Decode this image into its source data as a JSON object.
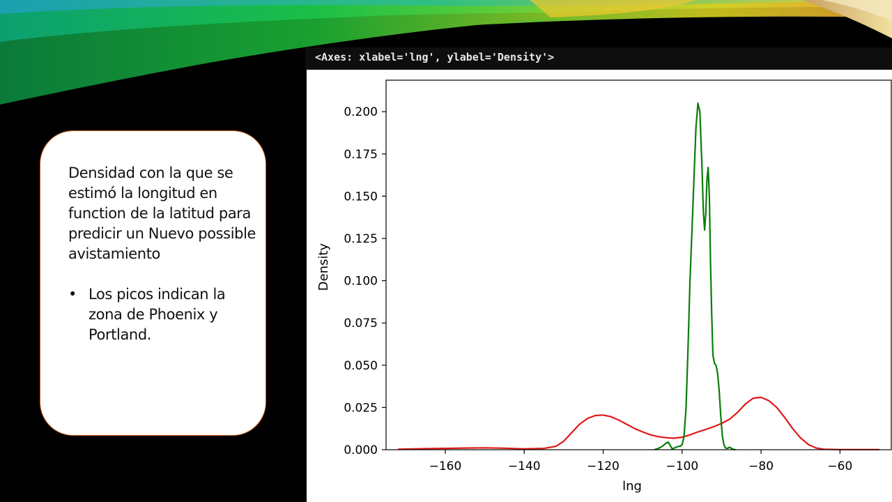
{
  "slide": {
    "paragraph": "Densidad con la que se estimó la longitud en function de la latitud para predicir un Nuevo possible avistamiento",
    "bullets": [
      "Los picos indican la zona de  Phoenix y Portland."
    ]
  },
  "cell_header": "<Axes: xlabel='lng', ylabel='Density'>",
  "colors": {
    "green_series": "#0a7d0a",
    "red_series": "#e01818",
    "textbox_border": "#c55a11"
  },
  "chart_data": {
    "type": "line",
    "xlabel": "lng",
    "ylabel": "Density",
    "xlim": [
      -175,
      -47
    ],
    "ylim": [
      0,
      0.21
    ],
    "xticks": [
      -160,
      -140,
      -120,
      -100,
      -80,
      -60
    ],
    "xtick_labels": [
      "−160",
      "−140",
      "−120",
      "−100",
      "−80",
      "−60"
    ],
    "yticks": [
      0,
      0.025,
      0.05,
      0.075,
      0.1,
      0.125,
      0.15,
      0.175,
      0.2
    ],
    "ytick_labels": [
      "0.000",
      "0.025",
      "0.050",
      "0.075",
      "0.100",
      "0.125",
      "0.150",
      "0.175",
      "0.200"
    ],
    "grid": false,
    "series": [
      {
        "color": "#e01818",
        "points": [
          [
            -172,
            0.0003
          ],
          [
            -165,
            0.0006
          ],
          [
            -160,
            0.0008
          ],
          [
            -155,
            0.001
          ],
          [
            -150,
            0.0011
          ],
          [
            -145,
            0.0009
          ],
          [
            -140,
            0.0005
          ],
          [
            -135,
            0.0008
          ],
          [
            -132,
            0.002
          ],
          [
            -130,
            0.005
          ],
          [
            -128,
            0.01
          ],
          [
            -126,
            0.015
          ],
          [
            -124,
            0.0185
          ],
          [
            -122,
            0.0202
          ],
          [
            -120,
            0.0205
          ],
          [
            -118,
            0.0195
          ],
          [
            -116,
            0.0175
          ],
          [
            -114,
            0.015
          ],
          [
            -112,
            0.0125
          ],
          [
            -110,
            0.0105
          ],
          [
            -108,
            0.0088
          ],
          [
            -106,
            0.0077
          ],
          [
            -104,
            0.0071
          ],
          [
            -102,
            0.0068
          ],
          [
            -100,
            0.0074
          ],
          [
            -98,
            0.0088
          ],
          [
            -96,
            0.0105
          ],
          [
            -94,
            0.012
          ],
          [
            -92,
            0.0136
          ],
          [
            -90,
            0.0155
          ],
          [
            -88,
            0.018
          ],
          [
            -86,
            0.022
          ],
          [
            -84,
            0.027
          ],
          [
            -82,
            0.0305
          ],
          [
            -80,
            0.031
          ],
          [
            -78,
            0.029
          ],
          [
            -76,
            0.025
          ],
          [
            -74,
            0.019
          ],
          [
            -72,
            0.0125
          ],
          [
            -70,
            0.007
          ],
          [
            -68,
            0.003
          ],
          [
            -66,
            0.001
          ],
          [
            -64,
            0.0003
          ],
          [
            -60,
            0.0001
          ],
          [
            -55,
            0.0001
          ],
          [
            -50,
            0.0001
          ]
        ]
      },
      {
        "color": "#0a7d0a",
        "points": [
          [
            -107,
            0
          ],
          [
            -106,
            0.0008
          ],
          [
            -105,
            0.002
          ],
          [
            -104,
            0.004
          ],
          [
            -103.5,
            0.0045
          ],
          [
            -103,
            0.0025
          ],
          [
            -102.5,
            0.0005
          ],
          [
            -102,
            0.001
          ],
          [
            -101,
            0.002
          ],
          [
            -100.5,
            0.002
          ],
          [
            -100,
            0.003
          ],
          [
            -99.5,
            0.008
          ],
          [
            -99,
            0.025
          ],
          [
            -98.5,
            0.06
          ],
          [
            -98,
            0.1
          ],
          [
            -97.5,
            0.13
          ],
          [
            -97,
            0.16
          ],
          [
            -96.5,
            0.19
          ],
          [
            -96,
            0.205
          ],
          [
            -95.5,
            0.2
          ],
          [
            -95,
            0.17
          ],
          [
            -94.6,
            0.14
          ],
          [
            -94.3,
            0.13
          ],
          [
            -94,
            0.14
          ],
          [
            -93.7,
            0.16
          ],
          [
            -93.4,
            0.167
          ],
          [
            -93.1,
            0.15
          ],
          [
            -92.8,
            0.11
          ],
          [
            -92.5,
            0.08
          ],
          [
            -92.2,
            0.056
          ],
          [
            -91.8,
            0.051
          ],
          [
            -91.4,
            0.05
          ],
          [
            -91,
            0.045
          ],
          [
            -90.6,
            0.035
          ],
          [
            -90.2,
            0.02
          ],
          [
            -89.8,
            0.008
          ],
          [
            -89.4,
            0.003
          ],
          [
            -89,
            0.001
          ],
          [
            -88.5,
            0.0008
          ],
          [
            -88,
            0.0015
          ],
          [
            -87.5,
            0.0008
          ],
          [
            -87,
            0.0002
          ],
          [
            -86.5,
            0
          ]
        ]
      }
    ]
  }
}
